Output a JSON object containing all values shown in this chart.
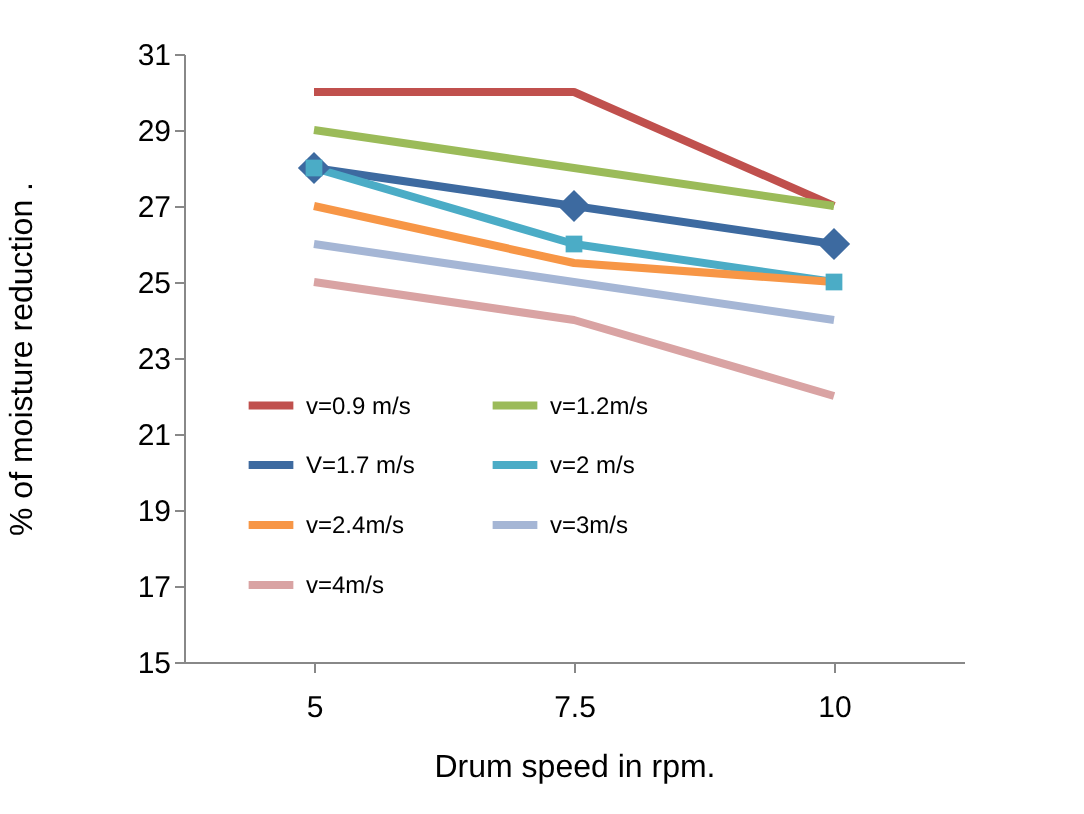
{
  "chart_data": {
    "type": "line",
    "xlabel": "Drum speed in rpm.",
    "ylabel": "% of moisture reduction .",
    "categories": [
      "5",
      "7.5",
      "10"
    ],
    "series": [
      {
        "name": "v=0.9 m/s",
        "color": "#c0504d",
        "values": [
          30,
          30,
          27
        ],
        "marker": "none"
      },
      {
        "name": "v=1.2m/s",
        "color": "#9bbb59",
        "values": [
          29,
          28,
          27
        ],
        "marker": "none"
      },
      {
        "name": "V=1.7 m/s",
        "color": "#3d6aa0",
        "values": [
          28,
          27,
          26
        ],
        "marker": "diamond"
      },
      {
        "name": "v=2 m/s",
        "color": "#4bacc6",
        "values": [
          28,
          26,
          25
        ],
        "marker": "square"
      },
      {
        "name": "v=2.4m/s",
        "color": "#f79646",
        "values": [
          27,
          25.5,
          25
        ],
        "marker": "none"
      },
      {
        "name": "v=3m/s",
        "color": "#a5b6d5",
        "values": [
          26,
          25,
          24
        ],
        "marker": "none"
      },
      {
        "name": "v=4m/s",
        "color": "#d9a3a3",
        "values": [
          25,
          24,
          22
        ],
        "marker": "none"
      }
    ],
    "ylim": [
      15,
      31
    ],
    "yticks": [
      15,
      17,
      19,
      21,
      23,
      25,
      27,
      29,
      31
    ],
    "grid": false,
    "legend": "bottom left",
    "line_style": "solid"
  }
}
